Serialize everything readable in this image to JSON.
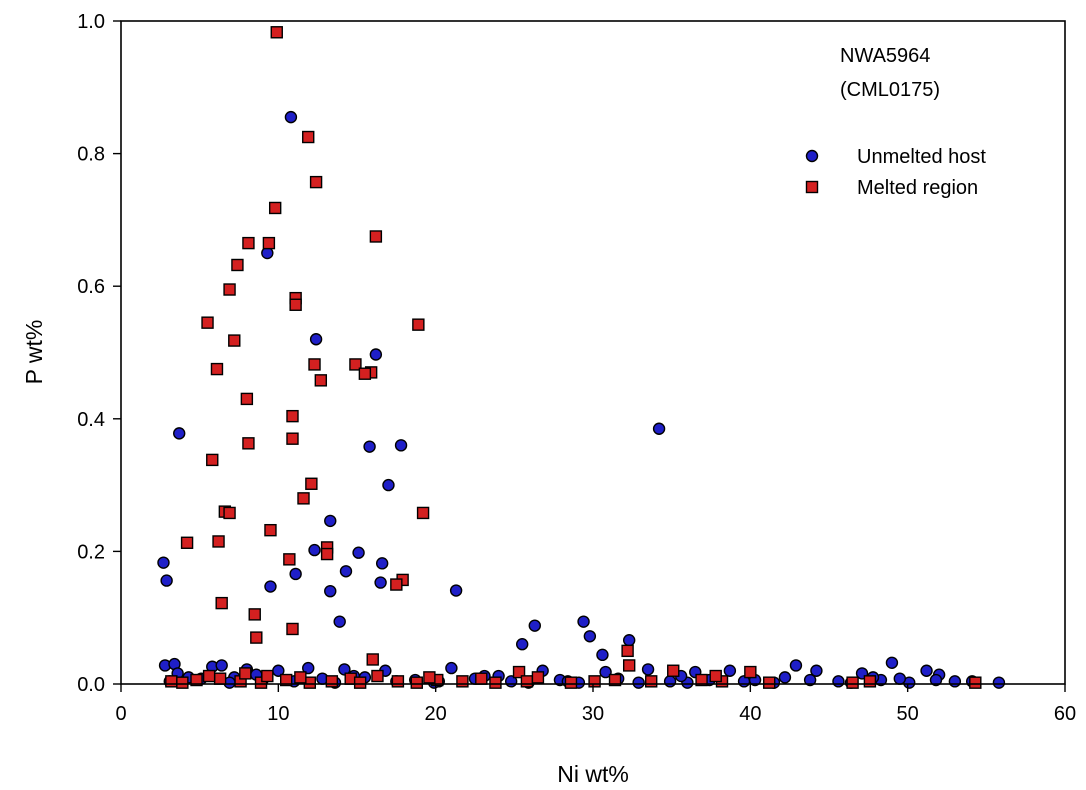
{
  "chart_data": {
    "type": "scatter",
    "title": "",
    "xlabel": "Ni wt%",
    "ylabel": "P wt%",
    "xlim": [
      0,
      60
    ],
    "ylim": [
      0,
      1.0
    ],
    "xticks": [
      0,
      10,
      20,
      30,
      40,
      50,
      60
    ],
    "yticks": [
      0.0,
      0.2,
      0.4,
      0.6,
      0.8,
      1.0
    ],
    "ytick_labels": [
      "0.0",
      "0.2",
      "0.4",
      "0.6",
      "0.8",
      "1.0"
    ],
    "grid": false,
    "annotation": [
      "NWA5964",
      "(CML0175)"
    ],
    "legend_position": "top-right",
    "series": [
      {
        "name": "Unmelted host",
        "marker": "circle",
        "color": "#1f1fc8",
        "points": [
          [
            10.8,
            0.855
          ],
          [
            9.3,
            0.65
          ],
          [
            12.4,
            0.52
          ],
          [
            16.2,
            0.497
          ],
          [
            3.7,
            0.378
          ],
          [
            34.2,
            0.385
          ],
          [
            15.8,
            0.358
          ],
          [
            17.8,
            0.36
          ],
          [
            17.0,
            0.3
          ],
          [
            13.3,
            0.246
          ],
          [
            2.7,
            0.183
          ],
          [
            12.3,
            0.202
          ],
          [
            15.1,
            0.198
          ],
          [
            16.6,
            0.182
          ],
          [
            14.3,
            0.17
          ],
          [
            11.1,
            0.166
          ],
          [
            2.9,
            0.156
          ],
          [
            16.5,
            0.153
          ],
          [
            9.5,
            0.147
          ],
          [
            21.3,
            0.141
          ],
          [
            13.3,
            0.14
          ],
          [
            13.9,
            0.094
          ],
          [
            29.4,
            0.094
          ],
          [
            26.3,
            0.088
          ],
          [
            29.8,
            0.072
          ],
          [
            32.3,
            0.066
          ],
          [
            25.5,
            0.06
          ],
          [
            30.6,
            0.044
          ],
          [
            42.9,
            0.028
          ],
          [
            49.0,
            0.032
          ],
          [
            2.8,
            0.028
          ],
          [
            3.4,
            0.03
          ],
          [
            5.8,
            0.026
          ],
          [
            6.4,
            0.028
          ],
          [
            8.0,
            0.022
          ],
          [
            10.0,
            0.02
          ],
          [
            11.9,
            0.024
          ],
          [
            14.2,
            0.022
          ],
          [
            16.8,
            0.02
          ],
          [
            21.0,
            0.024
          ],
          [
            23.1,
            0.012
          ],
          [
            26.8,
            0.02
          ],
          [
            30.8,
            0.018
          ],
          [
            33.5,
            0.022
          ],
          [
            36.5,
            0.018
          ],
          [
            38.7,
            0.02
          ],
          [
            44.2,
            0.02
          ],
          [
            47.1,
            0.016
          ],
          [
            51.2,
            0.02
          ],
          [
            52.0,
            0.014
          ],
          [
            55.8,
            0.002
          ],
          [
            54.1,
            0.004
          ],
          [
            4.3,
            0.01
          ],
          [
            5.1,
            0.008
          ],
          [
            7.2,
            0.01
          ],
          [
            9.0,
            0.006
          ],
          [
            12.8,
            0.008
          ],
          [
            15.5,
            0.01
          ],
          [
            18.7,
            0.006
          ],
          [
            20.2,
            0.004
          ],
          [
            22.5,
            0.008
          ],
          [
            24.8,
            0.004
          ],
          [
            27.9,
            0.006
          ],
          [
            29.1,
            0.002
          ],
          [
            31.6,
            0.008
          ],
          [
            34.9,
            0.004
          ],
          [
            37.4,
            0.006
          ],
          [
            39.6,
            0.004
          ],
          [
            41.5,
            0.002
          ],
          [
            43.8,
            0.006
          ],
          [
            45.6,
            0.004
          ],
          [
            48.3,
            0.006
          ],
          [
            50.1,
            0.002
          ],
          [
            53.0,
            0.004
          ],
          [
            3.1,
            0.004
          ],
          [
            6.9,
            0.002
          ],
          [
            11.0,
            0.004
          ],
          [
            13.6,
            0.002
          ],
          [
            17.5,
            0.004
          ],
          [
            19.9,
            0.002
          ],
          [
            25.9,
            0.002
          ],
          [
            28.4,
            0.004
          ],
          [
            32.9,
            0.002
          ],
          [
            36.0,
            0.002
          ],
          [
            40.3,
            0.006
          ],
          [
            46.4,
            0.002
          ],
          [
            49.5,
            0.008
          ],
          [
            51.8,
            0.006
          ],
          [
            3.6,
            0.016
          ],
          [
            8.6,
            0.014
          ],
          [
            14.8,
            0.012
          ],
          [
            24.0,
            0.012
          ],
          [
            35.6,
            0.012
          ],
          [
            42.2,
            0.01
          ],
          [
            47.8,
            0.01
          ]
        ]
      },
      {
        "name": "Melted region",
        "marker": "square",
        "color": "#d42020",
        "points": [
          [
            9.9,
            0.983
          ],
          [
            11.9,
            0.825
          ],
          [
            12.4,
            0.757
          ],
          [
            9.8,
            0.718
          ],
          [
            8.1,
            0.665
          ],
          [
            9.4,
            0.665
          ],
          [
            16.2,
            0.675
          ],
          [
            7.4,
            0.632
          ],
          [
            6.9,
            0.595
          ],
          [
            11.1,
            0.582
          ],
          [
            11.1,
            0.572
          ],
          [
            5.5,
            0.545
          ],
          [
            18.9,
            0.542
          ],
          [
            7.2,
            0.518
          ],
          [
            12.3,
            0.482
          ],
          [
            14.9,
            0.482
          ],
          [
            6.1,
            0.475
          ],
          [
            15.9,
            0.47
          ],
          [
            15.5,
            0.468
          ],
          [
            12.7,
            0.458
          ],
          [
            8.0,
            0.43
          ],
          [
            10.9,
            0.404
          ],
          [
            10.9,
            0.37
          ],
          [
            8.1,
            0.363
          ],
          [
            5.8,
            0.338
          ],
          [
            12.1,
            0.302
          ],
          [
            11.6,
            0.28
          ],
          [
            19.2,
            0.258
          ],
          [
            6.6,
            0.26
          ],
          [
            6.9,
            0.258
          ],
          [
            9.5,
            0.232
          ],
          [
            4.2,
            0.213
          ],
          [
            6.2,
            0.215
          ],
          [
            13.1,
            0.206
          ],
          [
            13.1,
            0.196
          ],
          [
            10.7,
            0.188
          ],
          [
            17.9,
            0.157
          ],
          [
            17.5,
            0.15
          ],
          [
            6.4,
            0.122
          ],
          [
            8.5,
            0.105
          ],
          [
            10.9,
            0.083
          ],
          [
            8.6,
            0.07
          ],
          [
            16.0,
            0.037
          ],
          [
            32.3,
            0.028
          ],
          [
            32.2,
            0.05
          ],
          [
            3.2,
            0.004
          ],
          [
            3.9,
            0.002
          ],
          [
            4.8,
            0.006
          ],
          [
            6.3,
            0.008
          ],
          [
            7.6,
            0.004
          ],
          [
            8.9,
            0.002
          ],
          [
            10.5,
            0.006
          ],
          [
            12.0,
            0.002
          ],
          [
            13.4,
            0.004
          ],
          [
            14.6,
            0.008
          ],
          [
            16.3,
            0.012
          ],
          [
            17.6,
            0.004
          ],
          [
            18.8,
            0.002
          ],
          [
            20.1,
            0.006
          ],
          [
            21.7,
            0.004
          ],
          [
            22.9,
            0.008
          ],
          [
            25.3,
            0.018
          ],
          [
            25.8,
            0.004
          ],
          [
            26.5,
            0.01
          ],
          [
            30.1,
            0.004
          ],
          [
            31.4,
            0.006
          ],
          [
            33.7,
            0.004
          ],
          [
            35.1,
            0.02
          ],
          [
            36.9,
            0.006
          ],
          [
            38.2,
            0.004
          ],
          [
            40.0,
            0.018
          ],
          [
            41.2,
            0.002
          ],
          [
            46.5,
            0.002
          ],
          [
            47.6,
            0.004
          ],
          [
            54.3,
            0.002
          ],
          [
            37.8,
            0.012
          ],
          [
            28.6,
            0.002
          ],
          [
            23.8,
            0.002
          ],
          [
            19.6,
            0.01
          ],
          [
            15.2,
            0.002
          ],
          [
            9.3,
            0.012
          ],
          [
            5.6,
            0.012
          ],
          [
            7.9,
            0.016
          ],
          [
            11.4,
            0.01
          ]
        ]
      }
    ]
  }
}
